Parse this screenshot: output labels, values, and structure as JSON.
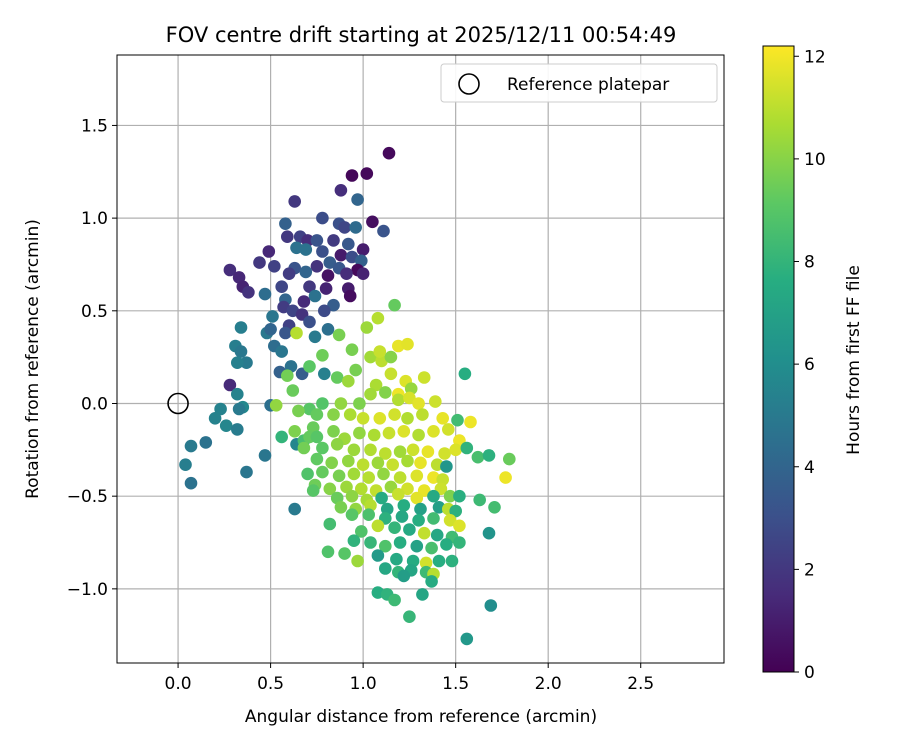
{
  "chart_data": {
    "type": "scatter",
    "title": "FOV centre drift starting at 2025/12/11 00:54:49",
    "xlabel": "Angular distance from reference (arcmin)",
    "ylabel": "Rotation from reference (arcmin)",
    "xlim": [
      -0.33,
      2.95
    ],
    "ylim": [
      -1.4,
      1.88
    ],
    "xticks": [
      "0.0",
      "0.5",
      "1.0",
      "1.5",
      "2.0",
      "2.5"
    ],
    "yticks": [
      "−1.0",
      "−0.5",
      "0.0",
      "0.5",
      "1.0",
      "1.5"
    ],
    "grid": true,
    "legend": {
      "placement": "top-right",
      "entries": [
        "Reference platepar"
      ]
    },
    "reference_point": {
      "x": 0.0,
      "y": 0.0
    },
    "colorbar": {
      "label": "Hours from first FF file",
      "range": [
        0,
        12.2
      ],
      "ticks": [
        "0",
        "2",
        "4",
        "6",
        "8",
        "10",
        "12"
      ],
      "colormap": "viridis"
    },
    "points": [
      [
        1.14,
        1.35,
        0.3
      ],
      [
        0.94,
        1.23,
        0.2
      ],
      [
        1.02,
        1.24,
        0.3
      ],
      [
        0.88,
        1.15,
        1.6
      ],
      [
        0.63,
        1.09,
        2.0
      ],
      [
        0.97,
        1.1,
        4.0
      ],
      [
        1.05,
        0.98,
        0.5
      ],
      [
        0.58,
        0.97,
        3.8
      ],
      [
        0.78,
        1.0,
        2.9
      ],
      [
        0.87,
        0.97,
        3.0
      ],
      [
        0.9,
        0.95,
        2.6
      ],
      [
        0.96,
        0.95,
        4.3
      ],
      [
        1.11,
        0.93,
        3.2
      ],
      [
        0.59,
        0.9,
        2.0
      ],
      [
        0.66,
        0.9,
        2.4
      ],
      [
        0.7,
        0.88,
        1.6
      ],
      [
        0.75,
        0.88,
        3.2
      ],
      [
        0.84,
        0.88,
        2.1
      ],
      [
        0.92,
        0.86,
        3.4
      ],
      [
        1.0,
        0.83,
        1.0
      ],
      [
        0.64,
        0.84,
        4.6
      ],
      [
        0.78,
        0.82,
        3.0
      ],
      [
        0.69,
        0.83,
        4.6
      ],
      [
        0.49,
        0.82,
        1.4
      ],
      [
        0.88,
        0.8,
        0.9
      ],
      [
        0.94,
        0.79,
        2.9
      ],
      [
        0.82,
        0.76,
        3.6
      ],
      [
        0.99,
        0.77,
        3.8
      ],
      [
        0.44,
        0.76,
        2.0
      ],
      [
        0.52,
        0.74,
        2.4
      ],
      [
        0.63,
        0.73,
        3.2
      ],
      [
        0.75,
        0.74,
        1.8
      ],
      [
        0.87,
        0.73,
        3.4
      ],
      [
        0.97,
        0.72,
        0.3
      ],
      [
        0.28,
        0.72,
        1.6
      ],
      [
        0.6,
        0.7,
        2.2
      ],
      [
        0.69,
        0.71,
        4.0
      ],
      [
        0.81,
        0.69,
        0.6
      ],
      [
        0.91,
        0.7,
        1.6
      ],
      [
        1.0,
        0.7,
        1.2
      ],
      [
        0.33,
        0.68,
        1.4
      ],
      [
        0.35,
        0.63,
        1.2
      ],
      [
        0.56,
        0.63,
        2.6
      ],
      [
        0.71,
        0.63,
        2.0
      ],
      [
        0.8,
        0.62,
        1.2
      ],
      [
        0.92,
        0.62,
        1.0
      ],
      [
        0.38,
        0.6,
        1.8
      ],
      [
        0.47,
        0.59,
        4.4
      ],
      [
        0.74,
        0.58,
        4.6
      ],
      [
        0.93,
        0.58,
        0.4
      ],
      [
        0.58,
        0.56,
        4.0
      ],
      [
        0.68,
        0.55,
        1.5
      ],
      [
        0.84,
        0.53,
        3.6
      ],
      [
        0.57,
        0.52,
        2.2
      ],
      [
        0.62,
        0.5,
        2.5
      ],
      [
        0.79,
        0.5,
        2.8
      ],
      [
        0.67,
        0.48,
        1.8
      ],
      [
        0.51,
        0.47,
        4.8
      ],
      [
        0.71,
        0.44,
        3.0
      ],
      [
        0.6,
        0.42,
        2.4
      ],
      [
        0.81,
        0.4,
        4.5
      ],
      [
        0.48,
        0.38,
        4.9
      ],
      [
        0.34,
        0.41,
        5.2
      ],
      [
        0.58,
        0.38,
        3.3
      ],
      [
        0.5,
        0.4,
        4.0
      ],
      [
        0.64,
        0.38,
        10.9
      ],
      [
        0.74,
        0.36,
        5.0
      ],
      [
        0.31,
        0.31,
        5.2
      ],
      [
        0.52,
        0.31,
        4.4
      ],
      [
        0.56,
        0.28,
        4.8
      ],
      [
        0.34,
        0.28,
        4.9
      ],
      [
        0.37,
        0.22,
        5.0
      ],
      [
        0.32,
        0.22,
        5.3
      ],
      [
        0.61,
        0.2,
        4.6
      ],
      [
        0.55,
        0.17,
        3.8
      ],
      [
        0.59,
        0.15,
        9.6
      ],
      [
        0.67,
        0.16,
        3.6
      ],
      [
        0.71,
        0.2,
        9.1
      ],
      [
        0.79,
        0.16,
        5.3
      ],
      [
        0.86,
        0.14,
        9.3
      ],
      [
        0.92,
        0.12,
        10.4
      ],
      [
        0.62,
        0.07,
        9.4
      ],
      [
        0.28,
        0.1,
        1.5
      ],
      [
        0.32,
        0.05,
        5.4
      ],
      [
        0.78,
        0.26,
        9.5
      ],
      [
        0.87,
        0.37,
        9.7
      ],
      [
        0.94,
        0.29,
        9.7
      ],
      [
        1.02,
        0.41,
        10.4
      ],
      [
        1.08,
        0.46,
        10.9
      ],
      [
        1.17,
        0.53,
        9.3
      ],
      [
        0.96,
        0.18,
        9.7
      ],
      [
        1.04,
        0.25,
        10.5
      ],
      [
        1.1,
        0.23,
        11.0
      ],
      [
        1.09,
        0.28,
        11.2
      ],
      [
        1.15,
        0.25,
        10.0
      ],
      [
        1.19,
        0.31,
        11.8
      ],
      [
        1.24,
        0.32,
        11.7
      ],
      [
        1.15,
        0.16,
        11.2
      ],
      [
        1.23,
        0.12,
        11.6
      ],
      [
        1.33,
        0.14,
        11.3
      ],
      [
        1.26,
        0.08,
        10.3
      ],
      [
        1.19,
        0.05,
        11.9
      ],
      [
        1.07,
        0.1,
        10.7
      ],
      [
        1.04,
        0.05,
        10.5
      ],
      [
        1.12,
        0.06,
        9.9
      ],
      [
        1.19,
        0.02,
        10.8
      ],
      [
        1.25,
        0.03,
        11.5
      ],
      [
        1.3,
        0.0,
        11.7
      ],
      [
        1.39,
        0.01,
        11.3
      ],
      [
        0.98,
        0.0,
        9.8
      ],
      [
        0.88,
        0.0,
        10.2
      ],
      [
        0.78,
        0.0,
        8.9
      ],
      [
        0.71,
        -0.03,
        9.0
      ],
      [
        0.65,
        -0.04,
        9.7
      ],
      [
        0.75,
        -0.06,
        9.3
      ],
      [
        0.84,
        -0.06,
        10.0
      ],
      [
        0.93,
        -0.06,
        10.7
      ],
      [
        1.0,
        -0.08,
        11.2
      ],
      [
        1.09,
        -0.08,
        11.6
      ],
      [
        1.17,
        -0.06,
        11.4
      ],
      [
        1.24,
        -0.08,
        10.8
      ],
      [
        1.32,
        -0.06,
        11.0
      ],
      [
        1.43,
        -0.08,
        11.8
      ],
      [
        1.51,
        -0.09,
        8.4
      ],
      [
        1.58,
        -0.1,
        11.9
      ],
      [
        0.5,
        -0.01,
        4.5
      ],
      [
        0.35,
        -0.02,
        5.7
      ],
      [
        0.53,
        -0.01,
        10.2
      ],
      [
        0.23,
        -0.03,
        5.4
      ],
      [
        0.33,
        -0.03,
        5.0
      ],
      [
        0.2,
        -0.08,
        5.4
      ],
      [
        0.15,
        -0.21,
        4.6
      ],
      [
        0.26,
        -0.12,
        5.6
      ],
      [
        0.32,
        -0.14,
        5.1
      ],
      [
        0.07,
        -0.23,
        5.0
      ],
      [
        0.04,
        -0.33,
        5.2
      ],
      [
        0.07,
        -0.43,
        4.6
      ],
      [
        0.37,
        -0.37,
        4.8
      ],
      [
        0.47,
        -0.28,
        4.8
      ],
      [
        0.64,
        -0.22,
        5.6
      ],
      [
        0.68,
        -0.2,
        8.6
      ],
      [
        0.73,
        -0.13,
        9.4
      ],
      [
        0.71,
        -0.18,
        9.3
      ],
      [
        0.63,
        -0.15,
        9.8
      ],
      [
        0.56,
        -0.18,
        8.0
      ],
      [
        0.75,
        -0.18,
        9.0
      ],
      [
        0.84,
        -0.15,
        9.8
      ],
      [
        0.9,
        -0.19,
        10.4
      ],
      [
        0.98,
        -0.16,
        10.2
      ],
      [
        1.06,
        -0.17,
        10.7
      ],
      [
        1.14,
        -0.16,
        11.2
      ],
      [
        1.22,
        -0.15,
        11.6
      ],
      [
        1.3,
        -0.17,
        10.8
      ],
      [
        1.38,
        -0.15,
        11.6
      ],
      [
        1.46,
        -0.14,
        11.4
      ],
      [
        1.52,
        -0.2,
        11.9
      ],
      [
        0.68,
        -0.24,
        9.6
      ],
      [
        0.78,
        -0.24,
        9.1
      ],
      [
        0.86,
        -0.22,
        10.1
      ],
      [
        0.95,
        -0.25,
        10.4
      ],
      [
        1.04,
        -0.25,
        10.8
      ],
      [
        1.12,
        -0.27,
        11.0
      ],
      [
        1.2,
        -0.26,
        10.5
      ],
      [
        1.27,
        -0.25,
        11.3
      ],
      [
        1.35,
        -0.26,
        11.8
      ],
      [
        1.44,
        -0.27,
        11.4
      ],
      [
        1.5,
        -0.25,
        11.6
      ],
      [
        1.56,
        -0.24,
        7.9
      ],
      [
        0.75,
        -0.3,
        9.2
      ],
      [
        0.83,
        -0.32,
        9.9
      ],
      [
        0.92,
        -0.31,
        10.2
      ],
      [
        1.0,
        -0.33,
        11.0
      ],
      [
        1.08,
        -0.32,
        10.4
      ],
      [
        1.16,
        -0.33,
        11.2
      ],
      [
        1.24,
        -0.31,
        10.6
      ],
      [
        1.31,
        -0.32,
        11.8
      ],
      [
        1.4,
        -0.33,
        11.0
      ],
      [
        1.45,
        -0.34,
        6.4
      ],
      [
        1.62,
        -0.29,
        8.6
      ],
      [
        1.68,
        -0.28,
        7.8
      ],
      [
        1.79,
        -0.3,
        9.4
      ],
      [
        1.77,
        -0.4,
        11.9
      ],
      [
        0.7,
        -0.38,
        8.8
      ],
      [
        0.78,
        -0.37,
        9.3
      ],
      [
        0.87,
        -0.39,
        9.7
      ],
      [
        0.95,
        -0.38,
        10.5
      ],
      [
        1.03,
        -0.4,
        10.9
      ],
      [
        1.11,
        -0.38,
        10.2
      ],
      [
        1.2,
        -0.4,
        11.0
      ],
      [
        1.29,
        -0.39,
        11.6
      ],
      [
        1.38,
        -0.4,
        11.9
      ],
      [
        1.43,
        -0.41,
        11.2
      ],
      [
        0.74,
        -0.44,
        9.5
      ],
      [
        0.82,
        -0.46,
        10.0
      ],
      [
        0.91,
        -0.45,
        10.4
      ],
      [
        0.99,
        -0.46,
        10.8
      ],
      [
        1.07,
        -0.47,
        11.1
      ],
      [
        1.15,
        -0.45,
        10.3
      ],
      [
        1.24,
        -0.46,
        11.4
      ],
      [
        1.33,
        -0.47,
        11.8
      ],
      [
        1.42,
        -0.46,
        11.3
      ],
      [
        0.73,
        -0.47,
        9.0
      ],
      [
        0.86,
        -0.51,
        9.4
      ],
      [
        0.94,
        -0.5,
        10.1
      ],
      [
        1.02,
        -0.52,
        10.6
      ],
      [
        1.1,
        -0.51,
        7.5
      ],
      [
        1.19,
        -0.49,
        11.2
      ],
      [
        1.29,
        -0.51,
        11.7
      ],
      [
        1.38,
        -0.5,
        7.4
      ],
      [
        1.47,
        -0.5,
        9.8
      ],
      [
        1.52,
        -0.5,
        7.7
      ],
      [
        1.63,
        -0.52,
        8.3
      ],
      [
        1.71,
        -0.56,
        8.5
      ],
      [
        0.88,
        -0.56,
        9.7
      ],
      [
        0.96,
        -0.57,
        10.2
      ],
      [
        1.04,
        -0.55,
        10.9
      ],
      [
        1.13,
        -0.57,
        7.2
      ],
      [
        1.22,
        -0.55,
        7.6
      ],
      [
        1.31,
        -0.57,
        7.0
      ],
      [
        1.41,
        -0.56,
        6.9
      ],
      [
        1.46,
        -0.57,
        11.0
      ],
      [
        1.5,
        -0.58,
        7.8
      ],
      [
        0.94,
        -0.6,
        9.0
      ],
      [
        1.03,
        -0.6,
        8.7
      ],
      [
        1.12,
        -0.62,
        7.8
      ],
      [
        1.21,
        -0.61,
        7.3
      ],
      [
        1.3,
        -0.63,
        7.6
      ],
      [
        1.38,
        -0.62,
        8.4
      ],
      [
        1.47,
        -0.63,
        11.4
      ],
      [
        1.52,
        -0.66,
        11.6
      ],
      [
        0.63,
        -0.57,
        5.0
      ],
      [
        0.82,
        -0.65,
        8.5
      ],
      [
        0.99,
        -0.69,
        8.8
      ],
      [
        1.08,
        -0.66,
        11.0
      ],
      [
        1.17,
        -0.67,
        8.0
      ],
      [
        1.25,
        -0.68,
        7.4
      ],
      [
        1.33,
        -0.7,
        11.1
      ],
      [
        1.4,
        -0.71,
        7.3
      ],
      [
        1.48,
        -0.72,
        8.4
      ],
      [
        1.68,
        -0.7,
        6.3
      ],
      [
        0.95,
        -0.74,
        7.9
      ],
      [
        1.04,
        -0.75,
        8.1
      ],
      [
        1.12,
        -0.77,
        8.8
      ],
      [
        1.2,
        -0.75,
        7.6
      ],
      [
        1.29,
        -0.77,
        7.0
      ],
      [
        1.37,
        -0.78,
        8.6
      ],
      [
        1.45,
        -0.76,
        7.6
      ],
      [
        1.52,
        -0.75,
        8.0
      ],
      [
        0.81,
        -0.8,
        8.8
      ],
      [
        0.9,
        -0.81,
        9.0
      ],
      [
        1.08,
        -0.82,
        6.6
      ],
      [
        1.18,
        -0.84,
        7.4
      ],
      [
        1.27,
        -0.85,
        7.5
      ],
      [
        1.34,
        -0.86,
        11.4
      ],
      [
        1.41,
        -0.85,
        7.6
      ],
      [
        1.48,
        -0.85,
        7.8
      ],
      [
        0.97,
        -0.85,
        10.4
      ],
      [
        1.12,
        -0.89,
        7.3
      ],
      [
        1.19,
        -0.91,
        8.0
      ],
      [
        1.26,
        -0.9,
        7.2
      ],
      [
        1.34,
        -0.91,
        8.3
      ],
      [
        1.38,
        -0.92,
        10.9
      ],
      [
        1.22,
        -0.93,
        6.8
      ],
      [
        1.37,
        -0.96,
        7.5
      ],
      [
        1.08,
        -1.02,
        7.6
      ],
      [
        1.13,
        -1.03,
        7.9
      ],
      [
        1.17,
        -1.06,
        8.3
      ],
      [
        1.32,
        -1.03,
        7.2
      ],
      [
        1.25,
        -1.15,
        8.1
      ],
      [
        1.69,
        -1.09,
        6.0
      ],
      [
        1.56,
        -1.27,
        6.5
      ],
      [
        1.55,
        0.16,
        7.6
      ]
    ]
  }
}
